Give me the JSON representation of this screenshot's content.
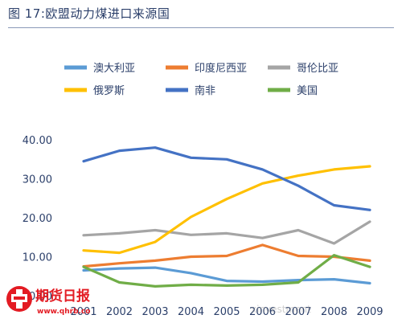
{
  "figure": {
    "title": "图 17:欧盟动力煤进口来源国"
  },
  "chart_data": {
    "type": "line",
    "title": "图 17:欧盟动力煤进口来源国",
    "xlabel": "",
    "ylabel": "",
    "categories": [
      "2001",
      "2002",
      "2003",
      "2004",
      "2005",
      "2006",
      "2007",
      "2008",
      "2009"
    ],
    "yticks": [
      "0.00",
      "10.00",
      "20.00",
      "30.00",
      "40.00"
    ],
    "ylim": [
      0,
      40
    ],
    "grid": false,
    "legend_position": "top",
    "series": [
      {
        "name": "澳大利亚",
        "color": "#5b9bd5",
        "values": [
          6.5,
          7.0,
          7.2,
          5.8,
          3.8,
          3.6,
          4.0,
          4.2,
          3.2
        ]
      },
      {
        "name": "印度尼西亚",
        "color": "#ed7d31",
        "values": [
          7.5,
          8.3,
          9.0,
          10.0,
          10.2,
          13.0,
          10.2,
          10.0,
          9.0
        ]
      },
      {
        "name": "哥伦比亚",
        "color": "#a5a5a5",
        "values": [
          15.5,
          16.0,
          16.8,
          15.6,
          16.0,
          14.8,
          16.8,
          13.4,
          19.0
        ]
      },
      {
        "name": "俄罗斯",
        "color": "#ffc000",
        "values": [
          11.6,
          11.0,
          13.8,
          20.2,
          24.8,
          28.8,
          30.8,
          32.4,
          33.2
        ]
      },
      {
        "name": "南非",
        "color": "#4472c4",
        "values": [
          34.5,
          37.2,
          38.0,
          35.4,
          35.0,
          32.4,
          28.2,
          23.2,
          22.0
        ]
      },
      {
        "name": "美国",
        "color": "#70ad47",
        "values": [
          7.4,
          3.4,
          2.4,
          2.8,
          2.6,
          2.8,
          3.4,
          10.4,
          7.4
        ]
      }
    ]
  },
  "watermark": {
    "logo_text": "期货日报网",
    "url": "www.qhrb.com.cn",
    "overlay_text": "xinvestment"
  }
}
